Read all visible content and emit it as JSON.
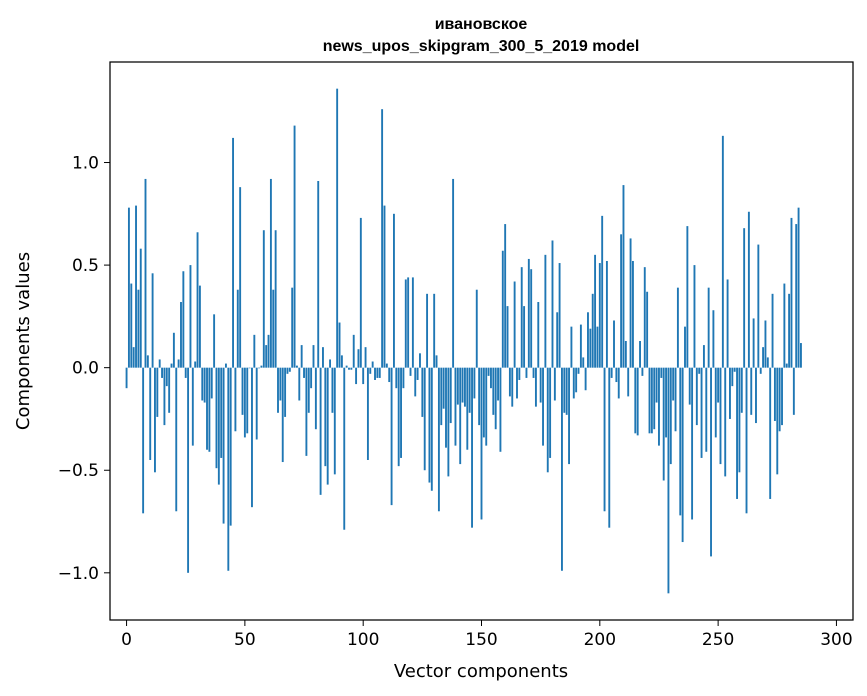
{
  "chart_data": {
    "type": "bar",
    "title": "ивановское",
    "subtitle": "news_upos_skipgram_300_5_2019 model",
    "xlabel": "Vector components",
    "ylabel": "Components values",
    "xlim": [
      -7,
      307
    ],
    "ylim": [
      -1.23,
      1.49
    ],
    "xticks": [
      0,
      50,
      100,
      150,
      200,
      250,
      300
    ],
    "xtick_labels": [
      "0",
      "50",
      "100",
      "150",
      "200",
      "250",
      "300"
    ],
    "yticks": [
      -1.0,
      -0.5,
      0.0,
      0.5,
      1.0
    ],
    "ytick_labels": [
      "−1.0",
      "−0.5",
      "0.0",
      "0.5",
      "1.0"
    ],
    "grid": false,
    "bar_color": "#1f77b4",
    "values": [
      -0.1,
      0.78,
      0.41,
      0.1,
      0.79,
      0.38,
      0.58,
      -0.71,
      0.92,
      0.06,
      -0.45,
      0.46,
      -0.51,
      -0.24,
      0.04,
      -0.05,
      -0.28,
      -0.09,
      -0.22,
      0.02,
      0.17,
      -0.7,
      0.04,
      0.32,
      0.47,
      -0.05,
      -1.0,
      0.5,
      -0.38,
      0.03,
      0.66,
      0.4,
      -0.16,
      -0.17,
      -0.4,
      -0.41,
      -0.15,
      0.26,
      -0.49,
      -0.57,
      -0.44,
      -0.76,
      0.02,
      -0.99,
      -0.77,
      1.12,
      -0.31,
      0.38,
      0.88,
      -0.23,
      -0.34,
      -0.32,
      0.0,
      -0.68,
      0.16,
      -0.35,
      0.0,
      0.01,
      0.67,
      0.11,
      0.16,
      0.92,
      0.38,
      0.67,
      -0.22,
      -0.16,
      -0.46,
      -0.24,
      -0.03,
      -0.02,
      0.39,
      1.18,
      0.01,
      -0.16,
      0.11,
      -0.05,
      -0.43,
      -0.22,
      -0.1,
      0.11,
      -0.3,
      0.91,
      -0.62,
      0.1,
      -0.48,
      -0.57,
      0.04,
      -0.22,
      -0.52,
      1.36,
      0.22,
      0.06,
      -0.79,
      0.01,
      -0.01,
      -0.01,
      0.16,
      -0.08,
      0.09,
      0.73,
      -0.08,
      0.1,
      -0.45,
      -0.03,
      0.03,
      -0.06,
      -0.05,
      -0.05,
      1.26,
      0.79,
      0.02,
      -0.07,
      -0.67,
      0.75,
      -0.1,
      -0.48,
      -0.44,
      -0.1,
      0.43,
      0.44,
      -0.04,
      0.44,
      -0.14,
      -0.06,
      0.07,
      -0.24,
      -0.5,
      0.36,
      -0.56,
      -0.6,
      0.36,
      0.06,
      -0.7,
      -0.28,
      -0.2,
      -0.39,
      -0.53,
      -0.27,
      0.92,
      -0.38,
      -0.18,
      -0.47,
      -0.17,
      -0.19,
      -0.4,
      -0.22,
      -0.78,
      -0.15,
      0.38,
      -0.28,
      -0.74,
      -0.34,
      -0.38,
      -0.04,
      -0.1,
      -0.23,
      -0.3,
      -0.16,
      -0.41,
      0.57,
      0.7,
      0.3,
      -0.14,
      -0.19,
      0.42,
      -0.15,
      -0.06,
      0.49,
      0.3,
      -0.05,
      0.53,
      0.48,
      -0.05,
      -0.19,
      0.32,
      -0.17,
      -0.38,
      0.55,
      -0.51,
      -0.44,
      0.62,
      -0.16,
      0.27,
      0.51,
      -0.99,
      -0.22,
      -0.23,
      -0.47,
      0.2,
      -0.15,
      -0.12,
      -0.03,
      0.21,
      0.05,
      -0.11,
      0.27,
      0.19,
      0.36,
      0.55,
      0.2,
      0.51,
      0.74,
      -0.7,
      0.52,
      -0.78,
      -0.05,
      0.23,
      -0.07,
      -0.15,
      0.65,
      0.89,
      0.13,
      -0.14,
      0.63,
      0.52,
      -0.32,
      -0.33,
      0.13,
      -0.04,
      0.49,
      0.37,
      -0.32,
      -0.32,
      -0.3,
      -0.17,
      -0.38,
      -0.05,
      -0.55,
      -0.34,
      -1.1,
      -0.47,
      -0.16,
      -0.31,
      0.39,
      -0.72,
      -0.85,
      0.2,
      0.69,
      -0.18,
      -0.74,
      0.5,
      -0.28,
      -0.03,
      -0.44,
      0.11,
      -0.41,
      0.39,
      -0.92,
      0.28,
      -0.34,
      -0.17,
      -0.47,
      1.13,
      -0.53,
      0.43,
      -0.25,
      -0.09,
      -0.02,
      -0.64,
      -0.51,
      -0.22,
      0.68,
      -0.71,
      0.76,
      -0.23,
      0.24,
      -0.27,
      0.6,
      -0.03,
      0.1,
      0.23,
      0.05,
      -0.64,
      0.36,
      -0.26,
      -0.52,
      -0.31,
      -0.28,
      0.41,
      0.02,
      0.36,
      0.73,
      -0.23,
      0.7,
      0.78,
      0.12
    ]
  }
}
